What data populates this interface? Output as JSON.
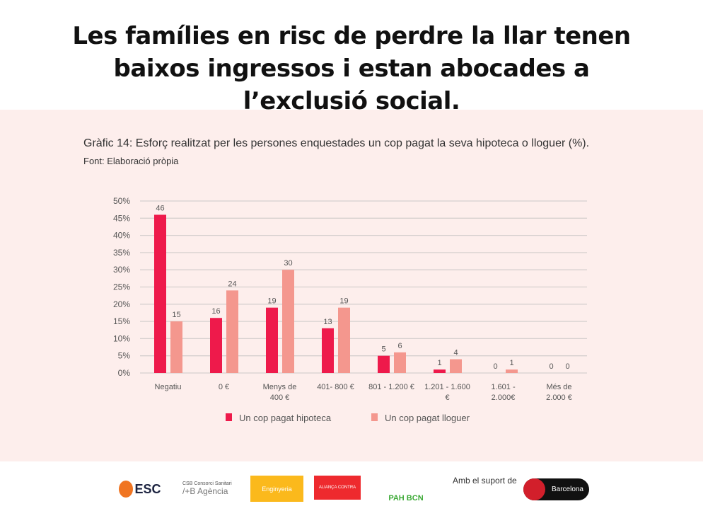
{
  "headline": "Les famílies en risc de perdre la llar tenen baixos ingressos i estan abocades a l’exclusió social.",
  "chart_data": {
    "type": "bar",
    "title": "Gràfic 14: Esforç realitzat per les persones enquestades un cop pagat la seva hipoteca o lloguer (%).",
    "source": "Font: Elaboració pròpia",
    "categories": [
      [
        "Negatiu"
      ],
      [
        "0 €"
      ],
      [
        "Menys de",
        "400 €"
      ],
      [
        "401- 800 €"
      ],
      [
        "801 - 1.200 €"
      ],
      [
        "1.201 - 1.600",
        "€"
      ],
      [
        "1.601 -",
        "2.000€"
      ],
      [
        "Més de",
        "2.000 €"
      ]
    ],
    "series": [
      {
        "name": "Un cop pagat hipoteca",
        "color": "#ee1a4b",
        "values": [
          46,
          16,
          19,
          13,
          5,
          1,
          0,
          0
        ]
      },
      {
        "name": "Un cop pagat lloguer",
        "color": "#f4978e",
        "values": [
          15,
          24,
          30,
          19,
          6,
          4,
          1,
          0
        ]
      }
    ],
    "ylim": [
      0,
      50
    ],
    "yticks": [
      "0%",
      "5%",
      "10%",
      "15%",
      "20%",
      "25%",
      "30%",
      "35%",
      "40%",
      "45%",
      "50%"
    ],
    "grid": true,
    "legend": "bottom"
  },
  "footer": {
    "logos": [
      "OBSERVATORI DESC",
      "CSB Consorci Sanitari de Barcelona / Agència de Salut Pública",
      "Enginyeria Sense Fronteres",
      "Aliança Contra la Pobresa Energètica",
      "PAH BCN",
      "Ajuntament de Barcelona"
    ],
    "support": "Amb el suport de"
  }
}
